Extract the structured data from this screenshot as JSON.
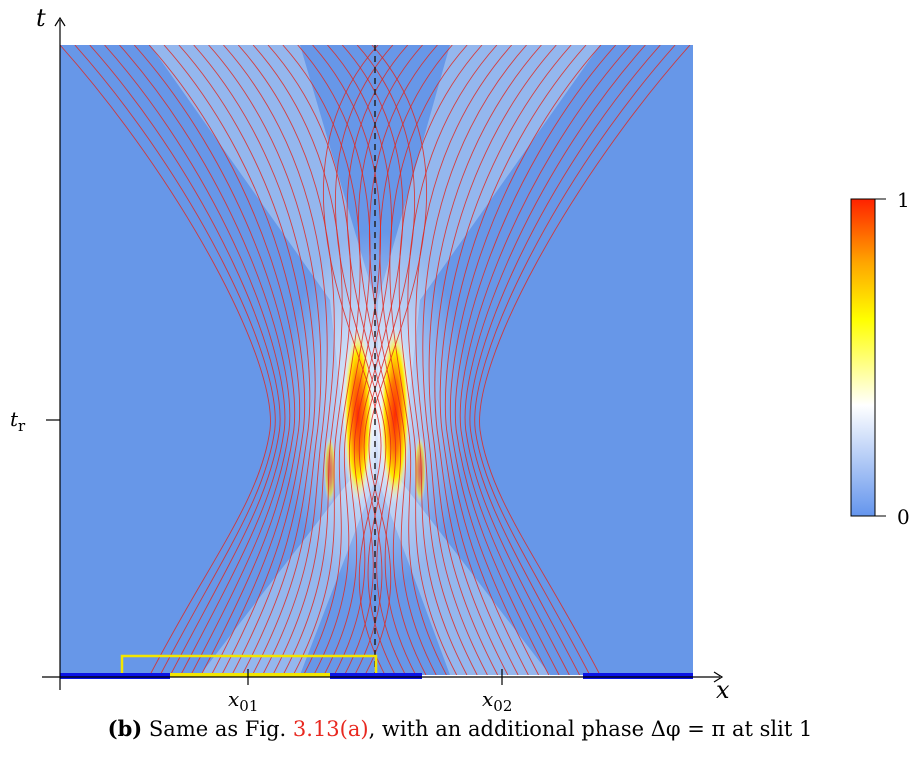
{
  "figure": {
    "axes": {
      "x_symbol": "x",
      "y_symbol": "t",
      "x_ticks": [
        {
          "main": "x",
          "sub": "01"
        },
        {
          "main": "x",
          "sub": "02"
        }
      ],
      "y_ticks": [
        {
          "main": "t",
          "sub": "r"
        }
      ]
    },
    "colorbar": {
      "max_label": "1",
      "min_label": "0",
      "colors": [
        "#6495ed",
        "#ffffff",
        "#ffff00",
        "#ffa500",
        "#ff3300"
      ]
    },
    "colors": {
      "background_density": "#6797e8",
      "trajectory": "#e0281f",
      "slit_1_marker": "#f2e600",
      "screen": "#0a14e6",
      "symmetry_line": "#333333"
    },
    "num_trajectories_per_slit": 22
  },
  "caption": {
    "label": "(b)",
    "text_before": "Same as Fig.",
    "ref": "3.13(a)",
    "text_after": ", with an additional phase Δφ = π at slit 1"
  }
}
